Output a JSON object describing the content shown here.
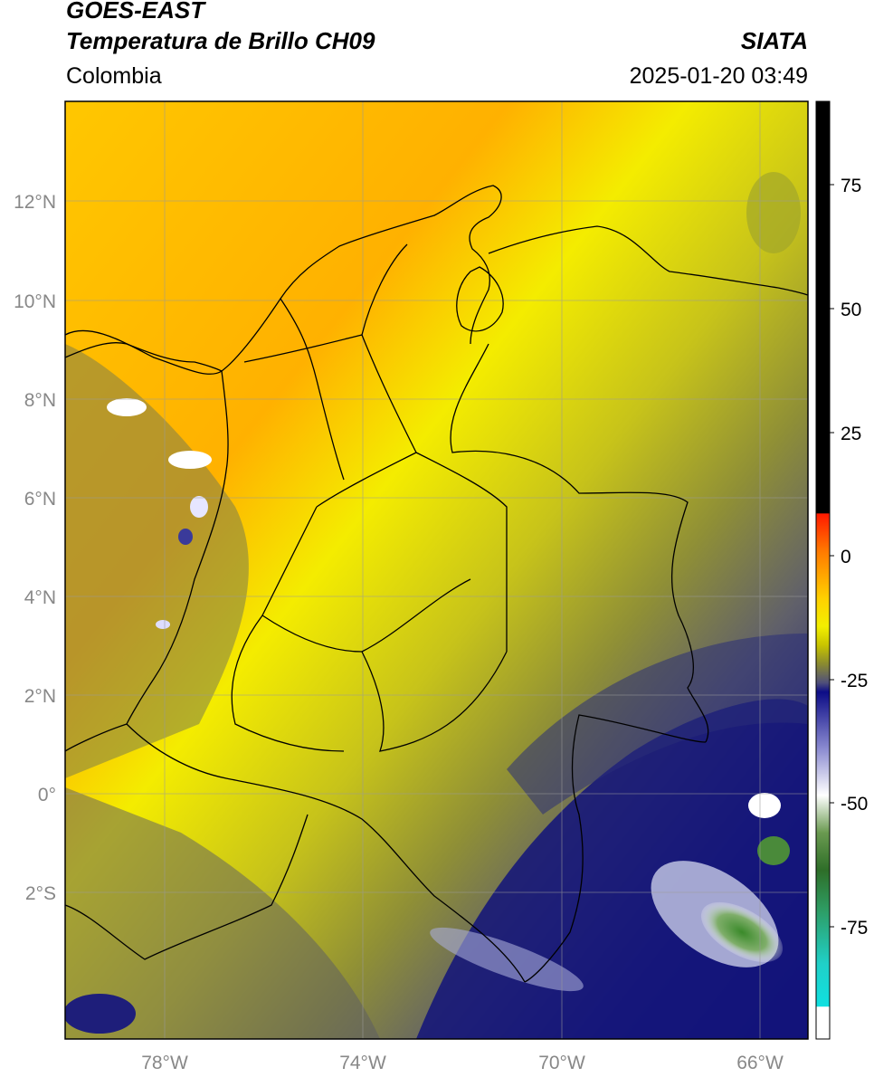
{
  "header": {
    "satellite": "GOES-EAST",
    "product": "Temperatura de Brillo CH09",
    "region": "Colombia",
    "org": "SIATA",
    "datetime": "2025-01-20 03:49"
  },
  "axes": {
    "lat_ticks": [
      "12°N",
      "10°N",
      "8°N",
      "6°N",
      "4°N",
      "2°N",
      "0°",
      "2°S"
    ],
    "lon_ticks": [
      "78°W",
      "74°W",
      "70°W",
      "66°W"
    ]
  },
  "colorbar": {
    "ticks": [
      "75",
      "50",
      "25",
      "0",
      "-25",
      "-50",
      "-75"
    ]
  },
  "colors": {
    "warm": "#ffb300",
    "yellow": "#f2ef00",
    "olive": "#9a9a2e",
    "gray": "#5e6070",
    "deep_blue": "#12137a",
    "white": "#ffffff",
    "green": "#3a8a2a",
    "cyan": "#12d8d2",
    "red": "#ff2000",
    "black": "#000000"
  }
}
